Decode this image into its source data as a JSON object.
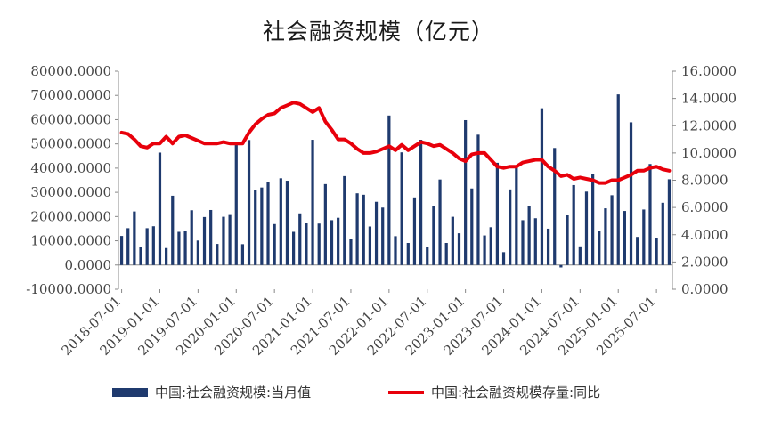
{
  "chart_data": {
    "type": "bar+line",
    "title": "社会融资规模（亿元）",
    "left_axis": {
      "ylim": [
        -10000,
        80000
      ],
      "ticks": [
        "80000.0000",
        "70000.0000",
        "60000.0000",
        "50000.0000",
        "40000.0000",
        "30000.0000",
        "20000.0000",
        "10000.0000",
        "0.0000",
        "-10000.0000"
      ]
    },
    "right_axis": {
      "ylim": [
        0,
        16
      ],
      "ticks": [
        "16.0000",
        "14.0000",
        "12.0000",
        "10.0000",
        "8.0000",
        "6.0000",
        "4.0000",
        "2.0000",
        "0.0000"
      ]
    },
    "x_tick_labels": [
      "2018-07-01",
      "2019-01-01",
      "2019-07-01",
      "2020-01-01",
      "2020-07-01",
      "2021-01-01",
      "2021-07-01",
      "2022-01-01",
      "2022-07-01",
      "2023-01-01",
      "2023-07-01",
      "2024-01-01",
      "2024-07-01",
      "2025-01-01",
      "2025-07-01"
    ],
    "months": [
      "2018-07",
      "2018-08",
      "2018-09",
      "2018-10",
      "2018-11",
      "2018-12",
      "2019-01",
      "2019-02",
      "2019-03",
      "2019-04",
      "2019-05",
      "2019-06",
      "2019-07",
      "2019-08",
      "2019-09",
      "2019-10",
      "2019-11",
      "2019-12",
      "2020-01",
      "2020-02",
      "2020-03",
      "2020-04",
      "2020-05",
      "2020-06",
      "2020-07",
      "2020-08",
      "2020-09",
      "2020-10",
      "2020-11",
      "2020-12",
      "2021-01",
      "2021-02",
      "2021-03",
      "2021-04",
      "2021-05",
      "2021-06",
      "2021-07",
      "2021-08",
      "2021-09",
      "2021-10",
      "2021-11",
      "2021-12",
      "2022-01",
      "2022-02",
      "2022-03",
      "2022-04",
      "2022-05",
      "2022-06",
      "2022-07",
      "2022-08",
      "2022-09",
      "2022-10",
      "2022-11",
      "2022-12",
      "2023-01",
      "2023-02",
      "2023-03",
      "2023-04",
      "2023-05",
      "2023-06",
      "2023-07",
      "2023-08",
      "2023-09",
      "2023-10",
      "2023-11",
      "2023-12",
      "2024-01",
      "2024-02",
      "2024-03",
      "2024-04",
      "2024-05",
      "2024-06",
      "2024-07",
      "2024-08",
      "2024-09",
      "2024-10",
      "2024-11",
      "2024-12",
      "2025-01",
      "2025-02",
      "2025-03",
      "2025-04",
      "2025-05",
      "2025-06",
      "2025-07",
      "2025-08",
      "2025-09"
    ],
    "series": [
      {
        "name": "中国:社会融资规模:当月值",
        "type": "bar",
        "axis": "left",
        "color": "#1f3a6e",
        "values": [
          12000,
          15200,
          22100,
          7300,
          15200,
          16000,
          46400,
          7000,
          28600,
          13700,
          14000,
          22600,
          10100,
          19800,
          22700,
          8700,
          19900,
          21000,
          50700,
          8600,
          51600,
          31000,
          32000,
          34400,
          16900,
          35800,
          34800,
          13700,
          21300,
          17200,
          51700,
          17100,
          33400,
          18500,
          19500,
          36700,
          10600,
          29600,
          29000,
          15900,
          26100,
          23700,
          61700,
          11900,
          46500,
          9100,
          27900,
          51700,
          7600,
          24300,
          35300,
          9100,
          19900,
          13100,
          59800,
          31600,
          53800,
          12200,
          15600,
          42200,
          5300,
          31200,
          40800,
          18500,
          24500,
          19300,
          64700,
          15000,
          48300,
          -1000,
          20600,
          33000,
          7700,
          30300,
          37600,
          14000,
          23400,
          28800,
          70400,
          22300,
          58900,
          11600,
          22900,
          41700,
          11300,
          25700,
          35400
        ]
      },
      {
        "name": "中国:社会融资规模存量:同比",
        "type": "line",
        "axis": "right",
        "color": "#e8000b",
        "values": [
          11.5,
          11.4,
          11.0,
          10.5,
          10.4,
          10.7,
          10.7,
          11.2,
          10.7,
          11.2,
          11.3,
          11.1,
          10.9,
          10.7,
          10.7,
          10.7,
          10.8,
          10.7,
          10.7,
          10.7,
          11.5,
          12.1,
          12.5,
          12.8,
          12.9,
          13.3,
          13.5,
          13.7,
          13.6,
          13.3,
          13.0,
          13.3,
          12.3,
          11.7,
          11.0,
          11.0,
          10.7,
          10.3,
          10.0,
          10.0,
          10.1,
          10.3,
          10.5,
          10.2,
          10.6,
          10.2,
          10.5,
          10.8,
          10.7,
          10.5,
          10.6,
          10.3,
          10.0,
          9.6,
          9.4,
          9.9,
          10.0,
          10.0,
          9.5,
          9.0,
          8.9,
          9.0,
          9.0,
          9.3,
          9.4,
          9.5,
          9.5,
          9.0,
          8.7,
          8.3,
          8.4,
          8.1,
          8.2,
          8.1,
          8.0,
          7.8,
          7.8,
          8.0,
          8.0,
          8.2,
          8.4,
          8.7,
          8.7,
          8.9,
          9.0,
          8.8,
          8.7
        ]
      }
    ],
    "legend_position": "bottom",
    "grid": false
  }
}
